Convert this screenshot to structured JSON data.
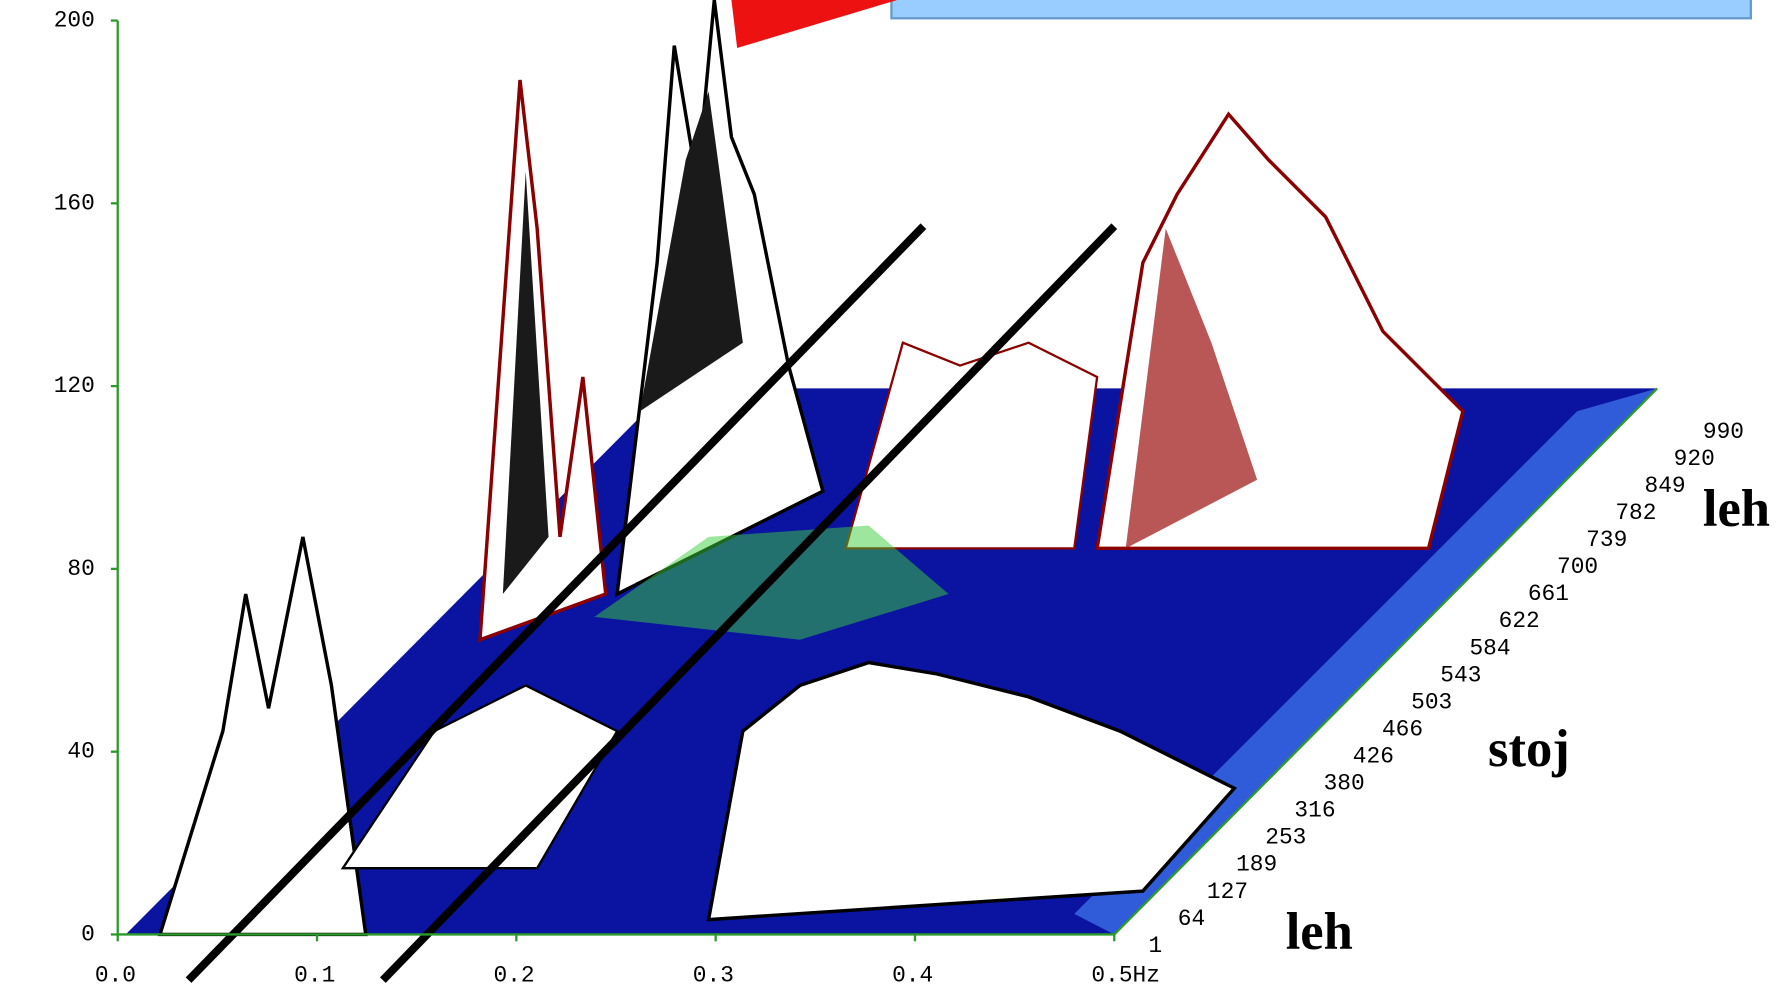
{
  "chart_data": {
    "type": "waterfall",
    "ylim": [
      0,
      200
    ],
    "yticks": [
      0,
      40,
      80,
      120,
      160,
      200
    ],
    "xlim": [
      0,
      0.5
    ],
    "xticks": [
      {
        "value": 0,
        "label": "0.0"
      },
      {
        "value": 0.1,
        "label": "0.1"
      },
      {
        "value": 0.2,
        "label": "0.2"
      },
      {
        "value": 0.3,
        "label": "0.3"
      },
      {
        "value": 0.4,
        "label": "0.4"
      },
      {
        "value": 0.5,
        "label": "0.5Hz"
      }
    ],
    "depth_categories": [
      "1",
      "64",
      "127",
      "189",
      "253",
      "316",
      "380",
      "426",
      "466",
      "503",
      "543",
      "584",
      "622",
      "661",
      "700",
      "739",
      "782",
      "849",
      "920",
      "990"
    ],
    "annotations": [
      "leh",
      "stoj",
      "leh"
    ]
  }
}
